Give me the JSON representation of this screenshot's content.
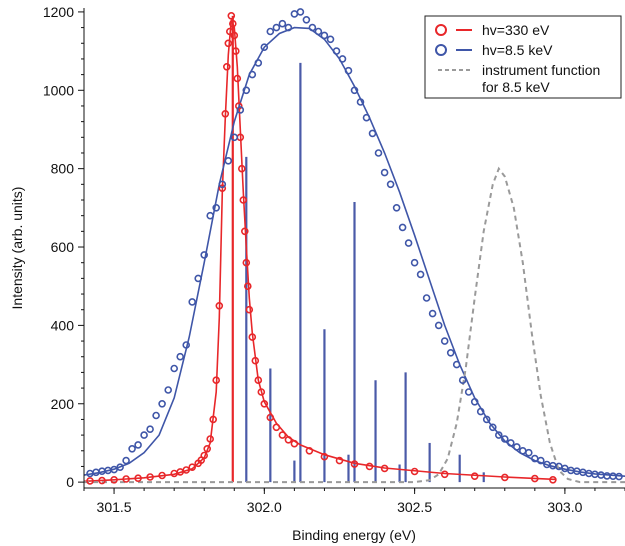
{
  "chart_data": {
    "type": "line",
    "xlabel": "Binding energy (eV)",
    "ylabel": "Intensity (arb. units)",
    "xlim": [
      301.4,
      303.2
    ],
    "ylim": [
      -15,
      1210
    ],
    "xticks": [
      301.5,
      302.0,
      302.5,
      303.0
    ],
    "xtick_labels": [
      "301.5",
      "302.0",
      "302.5",
      "303.0"
    ],
    "yticks": [
      0,
      200,
      400,
      600,
      800,
      1000,
      1200
    ],
    "ytick_labels": [
      "0",
      "200",
      "400",
      "600",
      "800",
      "1000",
      "1200"
    ],
    "grid": false,
    "legend_position": "top-right",
    "series": [
      {
        "name": "hv=330 eV",
        "kind": "data-points",
        "color": "#e8272a",
        "x": [
          301.42,
          301.46,
          301.5,
          301.54,
          301.58,
          301.62,
          301.66,
          301.7,
          301.72,
          301.74,
          301.76,
          301.78,
          301.79,
          301.8,
          301.81,
          301.82,
          301.83,
          301.84,
          301.85,
          301.86,
          301.87,
          301.875,
          301.88,
          301.885,
          301.89,
          301.895,
          301.9,
          301.905,
          301.91,
          301.915,
          301.92,
          301.925,
          301.93,
          301.935,
          301.94,
          301.945,
          301.95,
          301.96,
          301.97,
          301.98,
          301.99,
          302.0,
          302.02,
          302.04,
          302.06,
          302.08,
          302.1,
          302.15,
          302.2,
          302.25,
          302.3,
          302.35,
          302.4,
          302.5,
          302.6,
          302.7,
          302.8,
          302.9,
          302.96
        ],
        "y": [
          3,
          4,
          6,
          8,
          10,
          13,
          17,
          22,
          26,
          31,
          38,
          48,
          56,
          68,
          85,
          110,
          160,
          260,
          450,
          750,
          940,
          1060,
          1120,
          1150,
          1190,
          1170,
          1140,
          1100,
          1030,
          960,
          880,
          800,
          720,
          640,
          560,
          500,
          440,
          370,
          310,
          260,
          230,
          200,
          165,
          140,
          120,
          108,
          98,
          80,
          65,
          55,
          46,
          40,
          35,
          27,
          20,
          15,
          12,
          9,
          6
        ]
      },
      {
        "name": "hv=8.5 keV",
        "kind": "data-points",
        "color": "#3f56a8",
        "x": [
          301.42,
          301.44,
          301.46,
          301.48,
          301.5,
          301.52,
          301.54,
          301.56,
          301.58,
          301.6,
          301.62,
          301.64,
          301.66,
          301.68,
          301.7,
          301.72,
          301.74,
          301.76,
          301.78,
          301.8,
          301.82,
          301.84,
          301.86,
          301.88,
          301.9,
          301.92,
          301.94,
          301.96,
          301.98,
          302.0,
          302.02,
          302.04,
          302.06,
          302.08,
          302.1,
          302.12,
          302.14,
          302.16,
          302.18,
          302.2,
          302.22,
          302.24,
          302.26,
          302.28,
          302.3,
          302.32,
          302.34,
          302.36,
          302.38,
          302.4,
          302.42,
          302.44,
          302.46,
          302.48,
          302.5,
          302.52,
          302.54,
          302.56,
          302.58,
          302.6,
          302.62,
          302.64,
          302.66,
          302.68,
          302.7,
          302.72,
          302.74,
          302.76,
          302.78,
          302.8,
          302.82,
          302.84,
          302.86,
          302.88,
          302.9,
          302.92,
          302.94,
          302.96,
          302.98,
          303.0,
          303.02,
          303.04,
          303.06,
          303.08,
          303.1,
          303.12,
          303.14,
          303.16,
          303.18
        ],
        "y": [
          22,
          25,
          28,
          30,
          32,
          38,
          55,
          85,
          95,
          120,
          135,
          170,
          200,
          235,
          290,
          320,
          350,
          460,
          520,
          580,
          680,
          700,
          760,
          820,
          880,
          950,
          1000,
          1040,
          1070,
          1110,
          1150,
          1160,
          1170,
          1160,
          1195,
          1200,
          1180,
          1160,
          1150,
          1140,
          1130,
          1100,
          1080,
          1050,
          1000,
          970,
          930,
          890,
          840,
          790,
          760,
          700,
          650,
          610,
          560,
          530,
          470,
          430,
          400,
          360,
          330,
          300,
          260,
          230,
          205,
          180,
          160,
          140,
          120,
          110,
          100,
          90,
          80,
          75,
          60,
          55,
          45,
          42,
          40,
          35,
          30,
          28,
          25,
          22,
          20,
          18,
          16,
          15,
          14
        ]
      },
      {
        "name": "hv=330 eV",
        "kind": "fit-line",
        "color": "#e8272a",
        "x": [
          301.4,
          301.5,
          301.6,
          301.7,
          301.76,
          301.8,
          301.82,
          301.84,
          301.85,
          301.86,
          301.87,
          301.88,
          301.89,
          301.9,
          301.91,
          301.92,
          301.93,
          301.94,
          301.95,
          301.96,
          301.98,
          302.0,
          302.04,
          302.08,
          302.12,
          302.2,
          302.3,
          302.4,
          302.6,
          302.8,
          302.97
        ],
        "y": [
          2,
          6,
          11,
          20,
          34,
          62,
          100,
          230,
          420,
          740,
          930,
          1090,
          1180,
          1160,
          1060,
          900,
          740,
          600,
          470,
          380,
          260,
          205,
          150,
          115,
          95,
          70,
          48,
          36,
          22,
          13,
          7
        ]
      },
      {
        "name": "hv=8.5 keV",
        "kind": "fit-line",
        "color": "#3f56a8",
        "x": [
          301.4,
          301.45,
          301.5,
          301.55,
          301.6,
          301.65,
          301.7,
          301.75,
          301.8,
          301.85,
          301.9,
          301.95,
          302.0,
          302.05,
          302.1,
          302.15,
          302.2,
          302.25,
          302.3,
          302.35,
          302.4,
          302.45,
          302.5,
          302.55,
          302.6,
          302.65,
          302.7,
          302.75,
          302.8,
          302.85,
          302.9,
          302.95,
          303.0,
          303.05,
          303.1,
          303.15,
          303.2
        ],
        "y": [
          18,
          24,
          33,
          48,
          75,
          120,
          215,
          370,
          560,
          760,
          920,
          1040,
          1110,
          1145,
          1160,
          1158,
          1130,
          1080,
          1010,
          930,
          840,
          740,
          630,
          515,
          400,
          300,
          215,
          150,
          105,
          75,
          55,
          42,
          33,
          26,
          21,
          18,
          15
        ]
      },
      {
        "name": "instrument function\nfor 8.5 keV",
        "kind": "dashed-line",
        "color": "#9a9a9a",
        "x": [
          301.4,
          302.5,
          302.55,
          302.58,
          302.61,
          302.64,
          302.67,
          302.7,
          302.73,
          302.76,
          302.78,
          302.8,
          302.83,
          302.86,
          302.89,
          302.92,
          302.95,
          302.98,
          303.01,
          303.05,
          303.2
        ],
        "y": [
          0,
          0,
          5,
          20,
          60,
          150,
          290,
          470,
          640,
          760,
          800,
          780,
          700,
          560,
          380,
          220,
          100,
          30,
          8,
          0,
          0
        ]
      }
    ],
    "sticks": {
      "color": "#4a5aa8",
      "x": [
        301.895,
        301.94,
        302.02,
        302.1,
        302.12,
        302.2,
        302.28,
        302.3,
        302.37,
        302.45,
        302.47,
        302.55,
        302.65,
        302.73
      ],
      "y": [
        1190,
        830,
        290,
        55,
        1070,
        390,
        70,
        715,
        260,
        45,
        280,
        100,
        70,
        25
      ],
      "colors": [
        "#e8272a",
        "#4a5aa8",
        "#4a5aa8",
        "#4a5aa8",
        "#4a5aa8",
        "#4a5aa8",
        "#4a5aa8",
        "#4a5aa8",
        "#4a5aa8",
        "#4a5aa8",
        "#4a5aa8",
        "#4a5aa8",
        "#4a5aa8",
        "#4a5aa8"
      ]
    },
    "legend": [
      {
        "label": "hv=330 eV",
        "color": "#e8272a",
        "style": "circle-line"
      },
      {
        "label": "hv=8.5 keV",
        "color": "#3f56a8",
        "style": "circle-line"
      },
      {
        "label": "instrument function",
        "label2": "for 8.5 keV",
        "color": "#9a9a9a",
        "style": "dashed"
      }
    ]
  }
}
